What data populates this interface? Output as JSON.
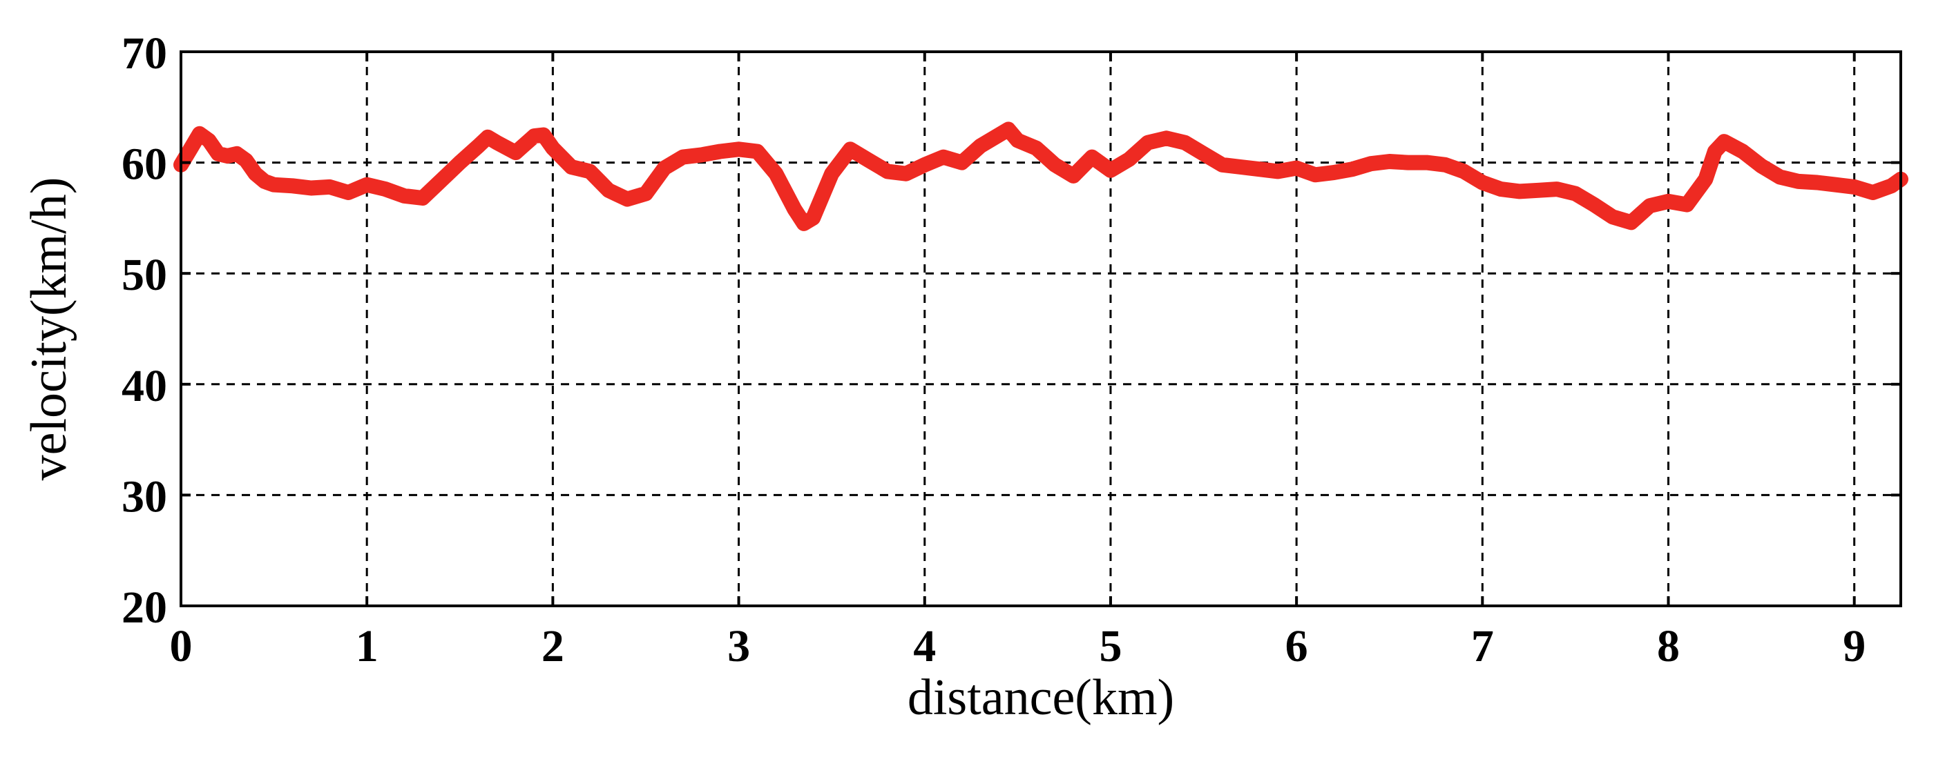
{
  "chart_data": {
    "type": "line",
    "title": "",
    "xlabel": "distance(km)",
    "ylabel": "velocity(km/h)",
    "xlim": [
      0,
      9.25
    ],
    "ylim": [
      20,
      70
    ],
    "xticks": [
      0,
      1,
      2,
      3,
      4,
      5,
      6,
      7,
      8,
      9
    ],
    "yticks": [
      20,
      30,
      40,
      50,
      60,
      70
    ],
    "grid": true,
    "legend": "none",
    "series": [
      {
        "color": "#ee2a22",
        "x": [
          0,
          0.05,
          0.1,
          0.15,
          0.2,
          0.25,
          0.3,
          0.35,
          0.4,
          0.45,
          0.5,
          0.6,
          0.7,
          0.8,
          0.9,
          1.0,
          1.1,
          1.2,
          1.3,
          1.4,
          1.5,
          1.6,
          1.65,
          1.7,
          1.8,
          1.9,
          1.95,
          2.0,
          2.1,
          2.2,
          2.3,
          2.4,
          2.5,
          2.6,
          2.7,
          2.8,
          2.9,
          3.0,
          3.1,
          3.2,
          3.3,
          3.35,
          3.4,
          3.5,
          3.6,
          3.7,
          3.8,
          3.9,
          4.0,
          4.1,
          4.2,
          4.3,
          4.4,
          4.45,
          4.5,
          4.6,
          4.7,
          4.8,
          4.9,
          5.0,
          5.1,
          5.2,
          5.3,
          5.4,
          5.5,
          5.6,
          5.7,
          5.8,
          5.9,
          6.0,
          6.1,
          6.2,
          6.3,
          6.4,
          6.5,
          6.6,
          6.7,
          6.8,
          6.9,
          7.0,
          7.1,
          7.2,
          7.3,
          7.4,
          7.5,
          7.6,
          7.7,
          7.8,
          7.9,
          8.0,
          8.1,
          8.2,
          8.25,
          8.3,
          8.4,
          8.5,
          8.6,
          8.7,
          8.8,
          8.9,
          9.0,
          9.1,
          9.2,
          9.25
        ],
        "values": [
          59.8,
          61.2,
          62.6,
          62.0,
          60.8,
          60.6,
          60.8,
          60.2,
          59.0,
          58.3,
          58.0,
          57.9,
          57.7,
          57.8,
          57.3,
          58.0,
          57.6,
          57.0,
          56.8,
          58.4,
          60.0,
          61.5,
          62.3,
          61.8,
          60.9,
          62.4,
          62.5,
          61.3,
          59.6,
          59.2,
          57.5,
          56.7,
          57.2,
          59.5,
          60.5,
          60.7,
          61.0,
          61.2,
          61.0,
          59.0,
          55.8,
          54.5,
          55.0,
          59.0,
          61.2,
          60.2,
          59.2,
          59.0,
          59.8,
          60.5,
          60.0,
          61.5,
          62.5,
          63.0,
          62.0,
          61.3,
          59.8,
          58.8,
          60.5,
          59.3,
          60.3,
          61.8,
          62.2,
          61.8,
          60.8,
          59.8,
          59.6,
          59.4,
          59.2,
          59.5,
          58.9,
          59.1,
          59.4,
          59.9,
          60.1,
          60.0,
          60.0,
          59.8,
          59.2,
          58.2,
          57.6,
          57.4,
          57.5,
          57.6,
          57.2,
          56.2,
          55.1,
          54.6,
          56.1,
          56.5,
          56.2,
          58.5,
          61.0,
          61.9,
          61.0,
          59.7,
          58.7,
          58.3,
          58.2,
          58.0,
          57.8,
          57.3,
          57.9,
          58.5
        ]
      }
    ]
  }
}
